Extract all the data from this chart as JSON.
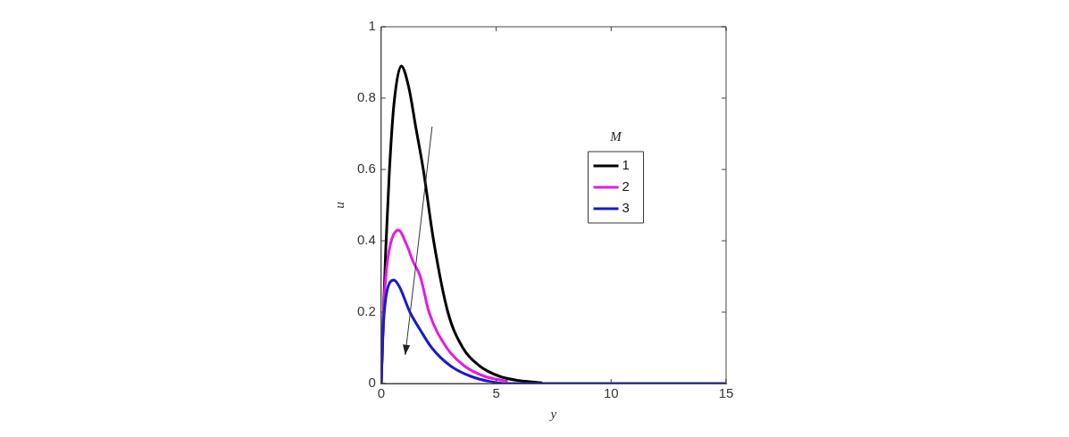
{
  "chart_data": {
    "type": "line",
    "xlabel": "y",
    "ylabel": "u",
    "legend_title": "M",
    "legend": "right",
    "grid": false,
    "marker": "none",
    "line_style": "solid",
    "xlim": [
      0,
      15
    ],
    "ylim": [
      0,
      1
    ],
    "xticks": [
      0,
      5,
      10,
      15
    ],
    "yticks": [
      0,
      0.2,
      0.4,
      0.6,
      0.8,
      1
    ],
    "series": [
      {
        "name": "1",
        "color": "#000000",
        "x": [
          0,
          0.1,
          0.2,
          0.36,
          0.55,
          0.87,
          1.2,
          1.5,
          1.83,
          2.28,
          2.9,
          3.55,
          4.26,
          5.15,
          6,
          7
        ],
        "values": [
          0,
          0.2,
          0.38,
          0.6,
          0.78,
          0.89,
          0.83,
          0.72,
          0.6,
          0.4,
          0.2,
          0.1,
          0.05,
          0.02,
          0.008,
          0.002
        ]
      },
      {
        "name": "2",
        "color": "#e619e6",
        "x": [
          0,
          0.1,
          0.2,
          0.4,
          0.75,
          1.1,
          1.4,
          1.7,
          2.08,
          2.85,
          3.6,
          4.5,
          5.5
        ],
        "values": [
          0,
          0.2,
          0.3,
          0.39,
          0.43,
          0.39,
          0.34,
          0.3,
          0.2,
          0.1,
          0.05,
          0.02,
          0.006
        ]
      },
      {
        "name": "3",
        "color": "#1a1acc",
        "x": [
          0,
          0.1,
          0.2,
          0.35,
          0.55,
          0.8,
          1.25,
          1.7,
          2.2,
          3,
          3.9,
          4.7,
          5.5,
          8,
          10,
          15
        ],
        "values": [
          0,
          0.17,
          0.24,
          0.28,
          0.29,
          0.27,
          0.2,
          0.15,
          0.1,
          0.05,
          0.02,
          0.006,
          0,
          0,
          0,
          0
        ]
      }
    ]
  }
}
